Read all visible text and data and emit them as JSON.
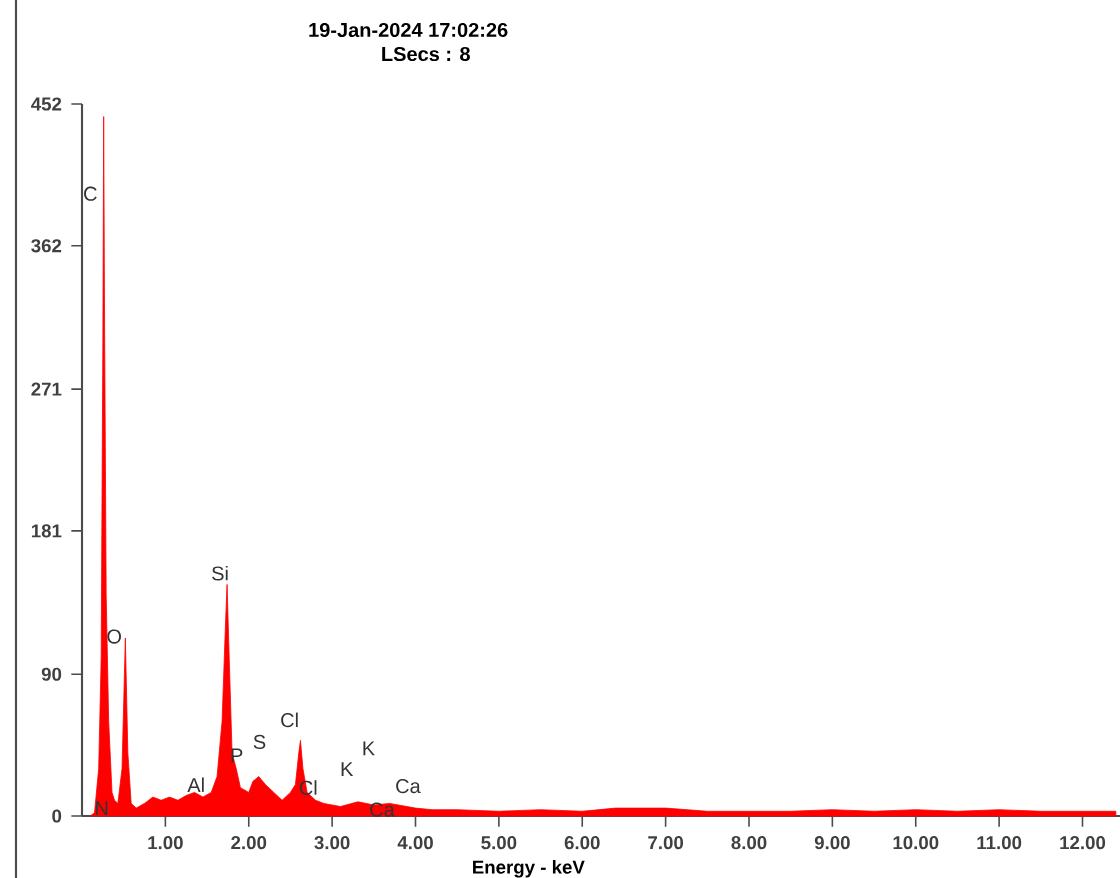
{
  "chart_data": {
    "type": "area",
    "title": "19-Jan-2024 17:02:26",
    "subtitle": "LSecs : 8",
    "xlabel": "Energy - keV",
    "color": "#ff0000",
    "x": [
      0.1,
      0.15,
      0.2,
      0.23,
      0.25,
      0.26,
      0.27,
      0.29,
      0.32,
      0.36,
      0.39,
      0.43,
      0.48,
      0.52,
      0.55,
      0.59,
      0.65,
      0.75,
      0.85,
      0.95,
      1.05,
      1.15,
      1.25,
      1.35,
      1.45,
      1.55,
      1.62,
      1.68,
      1.72,
      1.74,
      1.76,
      1.8,
      1.85,
      1.9,
      2.0,
      2.05,
      2.12,
      2.2,
      2.3,
      2.4,
      2.5,
      2.56,
      2.6,
      2.62,
      2.65,
      2.7,
      2.8,
      2.9,
      3.0,
      3.1,
      3.31,
      3.5,
      3.69,
      4.0,
      4.2,
      4.5,
      5.0,
      5.5,
      6.0,
      6.4,
      7.0,
      7.5,
      8.0,
      8.5,
      9.0,
      9.5,
      10.0,
      10.5,
      11.0,
      11.5,
      12.0,
      12.4
    ],
    "values": [
      0,
      2,
      30,
      100,
      300,
      444,
      320,
      140,
      60,
      15,
      10,
      8,
      30,
      113,
      40,
      8,
      5,
      8,
      12,
      10,
      12,
      10,
      13,
      15,
      12,
      15,
      25,
      60,
      120,
      147,
      110,
      40,
      30,
      18,
      15,
      22,
      25,
      20,
      15,
      10,
      15,
      20,
      40,
      48,
      30,
      15,
      10,
      8,
      7,
      6,
      9,
      7,
      8,
      5,
      4,
      4,
      3,
      4,
      3,
      5,
      5,
      3,
      3,
      3,
      4,
      3,
      4,
      3,
      4,
      3,
      3,
      3
    ],
    "xlim": [
      0,
      12.45
    ],
    "ylim": [
      0,
      452
    ],
    "xticks": [
      {
        "value": 1,
        "label": "1.00"
      },
      {
        "value": 2,
        "label": "2.00"
      },
      {
        "value": 3,
        "label": "3.00"
      },
      {
        "value": 4,
        "label": "4.00"
      },
      {
        "value": 5,
        "label": "5.00"
      },
      {
        "value": 6,
        "label": "6.00"
      },
      {
        "value": 7,
        "label": "7.00"
      },
      {
        "value": 8,
        "label": "8.00"
      },
      {
        "value": 9,
        "label": "9.00"
      },
      {
        "value": 10,
        "label": "10.00"
      },
      {
        "value": 11,
        "label": "11.00"
      },
      {
        "value": 12,
        "label": "12.00"
      }
    ],
    "yticks": [
      0,
      90,
      181,
      271,
      362,
      452
    ],
    "annotations": [
      "C",
      "O",
      "N",
      "Al",
      "Si",
      "P",
      "S",
      "Cl",
      "Cl",
      "K",
      "K",
      "Ca",
      "Ca"
    ]
  }
}
